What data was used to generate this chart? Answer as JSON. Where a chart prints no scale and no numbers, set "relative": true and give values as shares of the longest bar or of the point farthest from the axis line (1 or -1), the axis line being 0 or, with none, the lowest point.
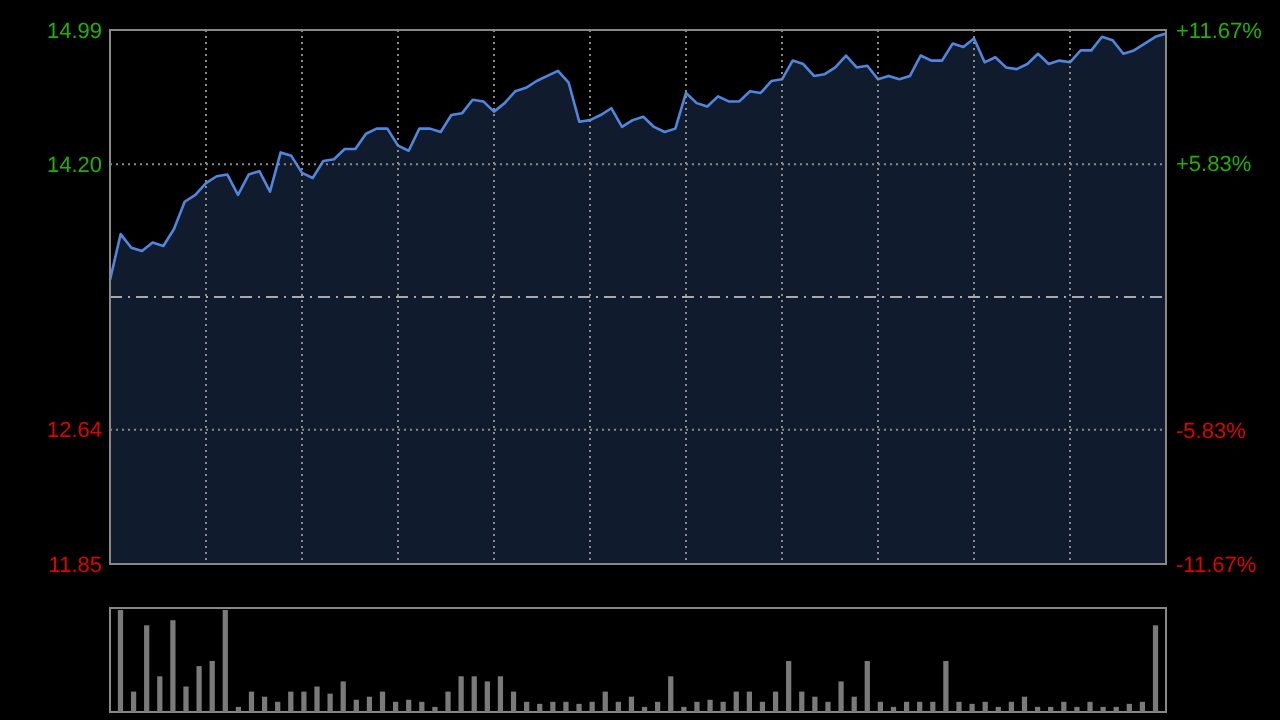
{
  "chart_data": [
    {
      "type": "area",
      "categories": [
        null,
        null,
        null,
        null,
        null,
        null,
        null,
        null,
        null,
        null,
        null,
        null,
        null,
        null,
        null,
        null,
        null,
        null,
        null,
        null,
        null,
        null,
        null,
        null,
        null,
        null,
        null,
        null,
        null,
        null,
        null,
        null,
        null,
        null,
        null,
        null,
        null,
        null,
        null,
        null,
        null,
        null,
        null,
        null,
        null,
        null,
        null,
        null,
        null,
        null,
        null,
        null,
        null,
        null,
        null,
        null,
        null,
        null,
        null,
        null,
        null,
        null,
        null,
        null,
        null,
        null,
        null,
        null,
        null,
        null,
        null,
        null,
        null,
        null,
        null,
        null,
        null,
        null,
        null,
        null,
        null,
        null,
        null,
        null,
        null,
        null,
        null,
        null,
        null,
        null,
        null,
        null,
        null,
        null,
        null,
        null,
        null,
        null,
        null,
        null
      ],
      "series": [
        {
          "color": "#4f86e0",
          "values": [
            13.52,
            13.79,
            13.71,
            13.69,
            13.74,
            13.72,
            13.82,
            13.98,
            14.02,
            14.09,
            14.13,
            14.14,
            14.02,
            14.14,
            14.16,
            14.04,
            14.27,
            14.25,
            14.15,
            14.12,
            14.22,
            14.23,
            14.29,
            14.29,
            14.38,
            14.41,
            14.41,
            14.31,
            14.28,
            14.41,
            14.41,
            14.39,
            14.49,
            14.5,
            14.58,
            14.57,
            14.51,
            14.56,
            14.63,
            14.65,
            14.69,
            14.72,
            14.75,
            14.68,
            14.45,
            14.46,
            14.49,
            14.53,
            14.42,
            14.46,
            14.48,
            14.42,
            14.39,
            14.41,
            14.62,
            14.56,
            14.54,
            14.6,
            14.57,
            14.57,
            14.63,
            14.62,
            14.69,
            14.7,
            14.81,
            14.79,
            14.72,
            14.73,
            14.77,
            14.84,
            14.77,
            14.78,
            14.7,
            14.72,
            14.7,
            14.72,
            14.84,
            14.81,
            14.81,
            14.91,
            14.89,
            14.94,
            14.8,
            14.83,
            14.77,
            14.76,
            14.79,
            14.85,
            14.79,
            14.81,
            14.8,
            14.87,
            14.87,
            14.95,
            14.93,
            14.85,
            14.87,
            14.91,
            14.95,
            14.97
          ]
        }
      ],
      "ylim": [
        11.85,
        14.99
      ],
      "yticks": [
        11.85,
        12.64,
        {
          "value": 14.2,
          "label": "14.20"
        },
        14.99
      ],
      "y2lim": [
        -11.67,
        11.67
      ],
      "y2ticks": [
        {
          "value": -11.67,
          "label": "-11.67%"
        },
        {
          "value": -5.83,
          "label": "-5.83%"
        },
        {
          "value": 5.83,
          "label": "+5.83%"
        },
        {
          "value": 11.67,
          "label": "+11.67%"
        }
      ],
      "ref_lines": [
        {
          "axis": "y",
          "value": 13.42,
          "line_style": "dashed"
        }
      ],
      "grid": true,
      "tick_labels": "y",
      "line_style": "solid"
    },
    {
      "type": "bar",
      "relative": true,
      "categories": [
        null,
        null,
        null,
        null,
        null,
        null,
        null,
        null,
        null,
        null,
        null,
        null,
        null,
        null,
        null,
        null,
        null,
        null,
        null,
        null,
        null,
        null,
        null,
        null,
        null,
        null,
        null,
        null,
        null,
        null,
        null,
        null,
        null,
        null,
        null,
        null,
        null,
        null,
        null,
        null,
        null,
        null,
        null,
        null,
        null,
        null,
        null,
        null,
        null,
        null,
        null,
        null,
        null,
        null,
        null,
        null,
        null,
        null,
        null,
        null,
        null,
        null,
        null,
        null,
        null,
        null,
        null,
        null,
        null,
        null,
        null,
        null,
        null,
        null,
        null,
        null,
        null,
        null,
        null,
        null
      ],
      "values": [
        1.0,
        0.2,
        0.85,
        0.35,
        0.9,
        0.25,
        0.45,
        0.5,
        1.0,
        0.05,
        0.2,
        0.15,
        0.1,
        0.2,
        0.2,
        0.25,
        0.18,
        0.3,
        0.12,
        0.15,
        0.2,
        0.1,
        0.12,
        0.1,
        0.05,
        0.2,
        0.35,
        0.35,
        0.3,
        0.35,
        0.2,
        0.1,
        0.08,
        0.1,
        0.1,
        0.08,
        0.1,
        0.2,
        0.1,
        0.15,
        0.05,
        0.1,
        0.35,
        0.05,
        0.1,
        0.12,
        0.1,
        0.2,
        0.2,
        0.1,
        0.2,
        0.5,
        0.2,
        0.15,
        0.1,
        0.3,
        0.15,
        0.5,
        0.1,
        0.05,
        0.1,
        0.1,
        0.1,
        0.5,
        0.1,
        0.08,
        0.1,
        0.05,
        0.1,
        0.15,
        0.05,
        0.05,
        0.1,
        0.05,
        0.1,
        0.05,
        0.05,
        0.08,
        0.1,
        0.85
      ],
      "color": "#7a7a7a"
    }
  ]
}
